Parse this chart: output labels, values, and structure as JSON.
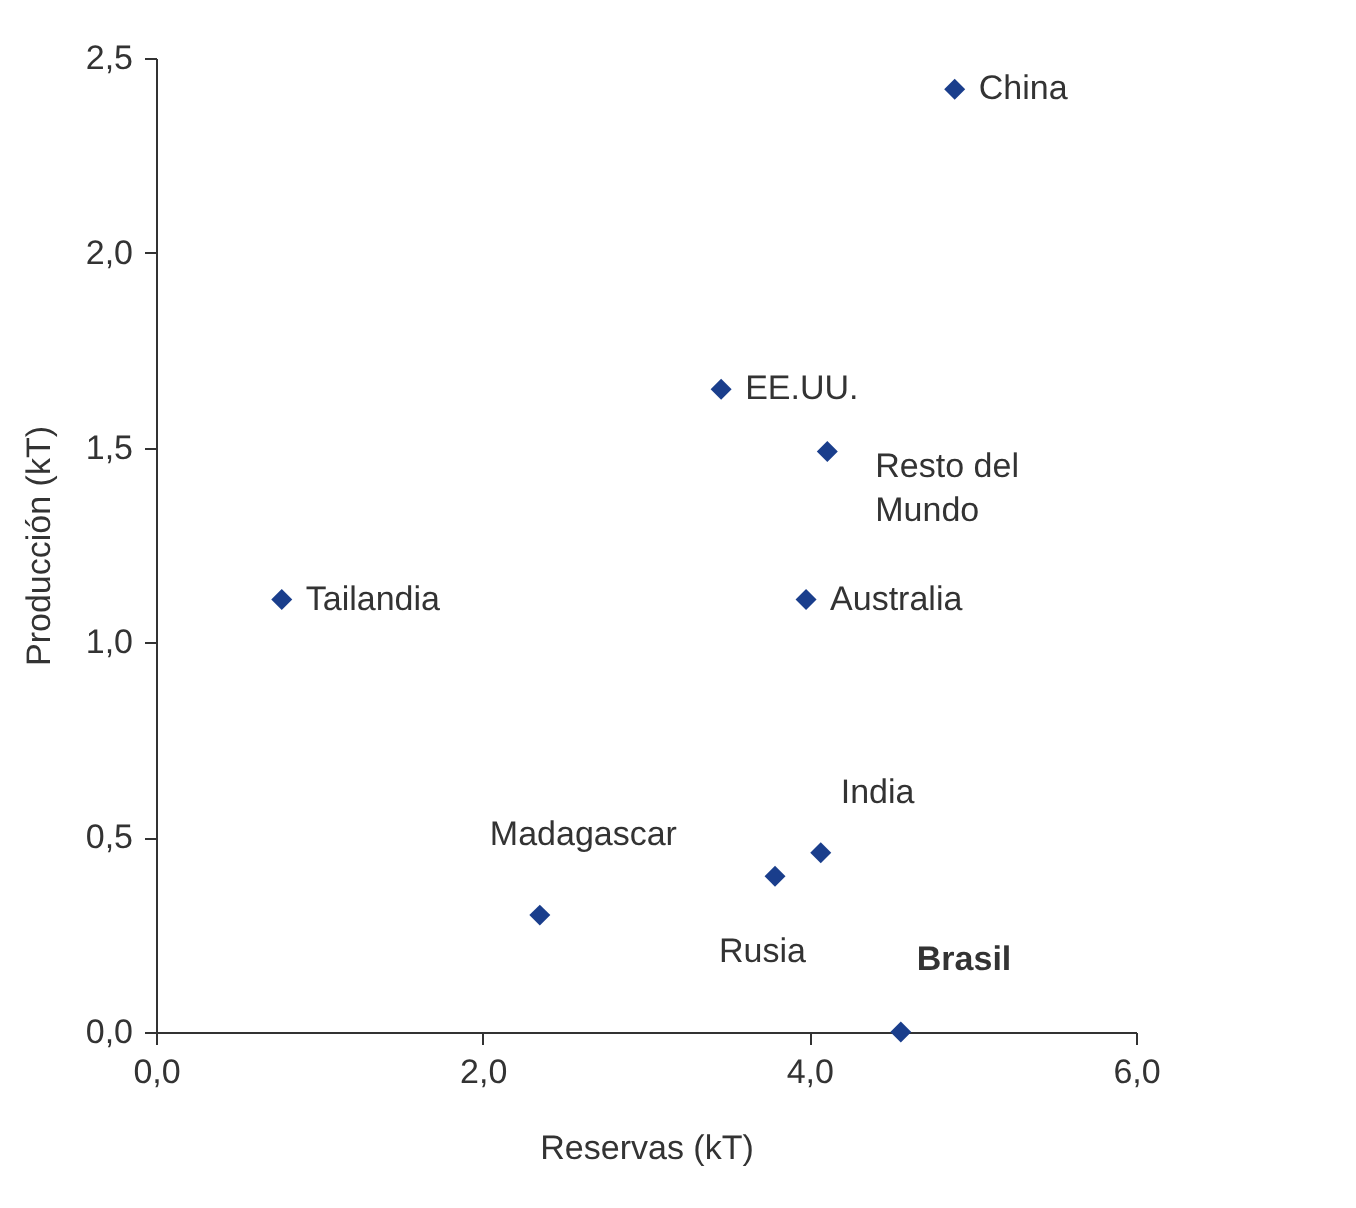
{
  "chart_data": {
    "type": "scatter",
    "xlabel": "Reservas  (kT)",
    "ylabel": "Producción  (kT)",
    "x": [
      4.89,
      3.46,
      4.11,
      0.77,
      3.98,
      4.07,
      3.79,
      2.35,
      4.56
    ],
    "series": [
      {
        "color": "#1a3e8c",
        "values": [
          2.42,
          1.65,
          1.49,
          1.11,
          1.11,
          0.46,
          0.4,
          0.3,
          0.0
        ]
      }
    ],
    "xlim": [
      0,
      6
    ],
    "xticks": [
      {
        "value": 0,
        "label": "0,0"
      },
      {
        "value": 2,
        "label": "2,0"
      },
      {
        "value": 4,
        "label": "4,0"
      },
      {
        "value": 6,
        "label": "6,0"
      }
    ],
    "ylim": [
      0,
      2.5
    ],
    "yticks": [
      {
        "value": 0,
        "label": "0,0"
      },
      {
        "value": 0.5,
        "label": "0,5"
      },
      {
        "value": 1,
        "label": "1,0"
      },
      {
        "value": 1.5,
        "label": "1,5"
      },
      {
        "value": 2,
        "label": "2,0"
      },
      {
        "value": 2.5,
        "label": "2,5"
      }
    ],
    "annotations": [
      {
        "text": "China",
        "x": 4.89,
        "y": 2.42
      },
      {
        "text": "EE.UU.",
        "x": 3.46,
        "y": 1.65
      },
      {
        "text": "Resto del\nMundo",
        "x": 4.11,
        "y": 1.49
      },
      {
        "text": "Tailandia",
        "x": 0.77,
        "y": 1.11
      },
      {
        "text": "Australia",
        "x": 3.98,
        "y": 1.11
      },
      {
        "text": "India",
        "x": 4.07,
        "y": 0.46
      },
      {
        "text": "Rusia",
        "x": 3.79,
        "y": 0.4
      },
      {
        "text": "Madagascar",
        "x": 2.35,
        "y": 0.3
      },
      {
        "text": "Brasil",
        "x": 4.56,
        "y": 0.0
      }
    ],
    "marker": "diamond",
    "grid": false
  }
}
